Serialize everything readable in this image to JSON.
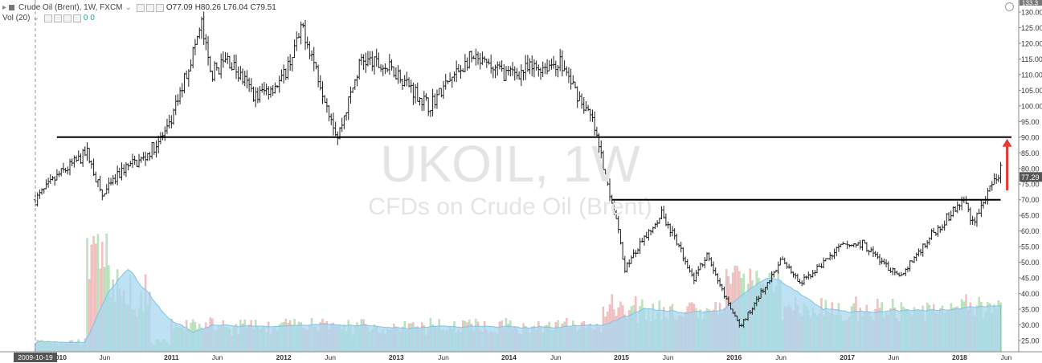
{
  "legend": {
    "symbol_line": "Crude Oil (Brent), 1W, FXCM",
    "open": "O77.09",
    "high": "H80.26",
    "low": "L76.04",
    "close": "C79.51",
    "vol_label": "Vol (20)",
    "vol_val1": "0",
    "vol_val2": "0"
  },
  "watermark": {
    "main": "UKOIL, 1W",
    "sub": "CFDs on Crude Oil (Brent)"
  },
  "colors": {
    "up_volume": "#bfe6c0",
    "down_volume": "#f2c4c4",
    "volume_ma_fill": "#a8d8f0",
    "price_bars": "#222222",
    "annotation_line": "#000000",
    "arrow": "#e53935",
    "last_price_bg": "#555555"
  },
  "price_axis": {
    "ticks": [
      "130.00",
      "125.00",
      "120.00",
      "115.00",
      "110.00",
      "105.00",
      "100.00",
      "95.00",
      "90.00",
      "85.00",
      "80.00",
      "75.00",
      "70.00",
      "65.00",
      "60.00",
      "55.00",
      "50.00",
      "45.00",
      "40.00",
      "35.00",
      "30.00",
      "25.00"
    ],
    "top_label": "133.3",
    "last_price": "77.29"
  },
  "time_axis": {
    "cursor_date": "2009-10-19",
    "labels": [
      "2010",
      "Jun",
      "2011",
      "Jun",
      "2012",
      "Jun",
      "2013",
      "Jun",
      "2014",
      "Jun",
      "2015",
      "Jun",
      "2016",
      "Jun",
      "2017",
      "Jun",
      "2018",
      "Jun"
    ]
  },
  "chart_data": {
    "type": "ohlc",
    "title": "Crude Oil (Brent), 1W, FXCM",
    "symbol": "UKOIL",
    "interval": "1W",
    "y_axis_range": [
      22,
      133
    ],
    "weekly_close_anchors": [
      {
        "x": "2009-10-19",
        "close": 70
      },
      {
        "x": "2010-01-04",
        "close": 78
      },
      {
        "x": "2010-04-05",
        "close": 85
      },
      {
        "x": "2010-05-24",
        "close": 71
      },
      {
        "x": "2010-08-02",
        "close": 80
      },
      {
        "x": "2010-10-04",
        "close": 83
      },
      {
        "x": "2010-12-27",
        "close": 93
      },
      {
        "x": "2011-03-07",
        "close": 115
      },
      {
        "x": "2011-04-11",
        "close": 126
      },
      {
        "x": "2011-05-09",
        "close": 110
      },
      {
        "x": "2011-07-04",
        "close": 115
      },
      {
        "x": "2011-10-03",
        "close": 103
      },
      {
        "x": "2011-12-26",
        "close": 108
      },
      {
        "x": "2012-03-05",
        "close": 125
      },
      {
        "x": "2012-06-25",
        "close": 90
      },
      {
        "x": "2012-09-10",
        "close": 115
      },
      {
        "x": "2012-12-31",
        "close": 111
      },
      {
        "x": "2013-04-15",
        "close": 100
      },
      {
        "x": "2013-08-26",
        "close": 115
      },
      {
        "x": "2013-12-30",
        "close": 110
      },
      {
        "x": "2014-06-16",
        "close": 114
      },
      {
        "x": "2014-09-29",
        "close": 95
      },
      {
        "x": "2014-12-08",
        "close": 67
      },
      {
        "x": "2015-01-12",
        "close": 48
      },
      {
        "x": "2015-05-11",
        "close": 66
      },
      {
        "x": "2015-08-24",
        "close": 45
      },
      {
        "x": "2015-10-05",
        "close": 52
      },
      {
        "x": "2016-01-18",
        "close": 29
      },
      {
        "x": "2016-06-06",
        "close": 51
      },
      {
        "x": "2016-08-01",
        "close": 43
      },
      {
        "x": "2016-12-12",
        "close": 55
      },
      {
        "x": "2017-02-20",
        "close": 56
      },
      {
        "x": "2017-06-19",
        "close": 45
      },
      {
        "x": "2017-09-25",
        "close": 58
      },
      {
        "x": "2018-01-15",
        "close": 70
      },
      {
        "x": "2018-02-12",
        "close": 63
      },
      {
        "x": "2018-04-16",
        "close": 74
      },
      {
        "x": "2018-05-14",
        "close": 79.51
      }
    ],
    "horizontal_lines": [
      {
        "level": 90,
        "from": "2009-12-28",
        "to": "2018-06-18"
      },
      {
        "level": 70,
        "from": "2014-12-01",
        "to": "2018-05-14"
      }
    ],
    "arrow": {
      "direction": "up",
      "from": 73,
      "to": 89,
      "at": "2018-06-04"
    },
    "volume_indicator": "Vol (20)",
    "grid": false,
    "legend_position": "top-left"
  }
}
